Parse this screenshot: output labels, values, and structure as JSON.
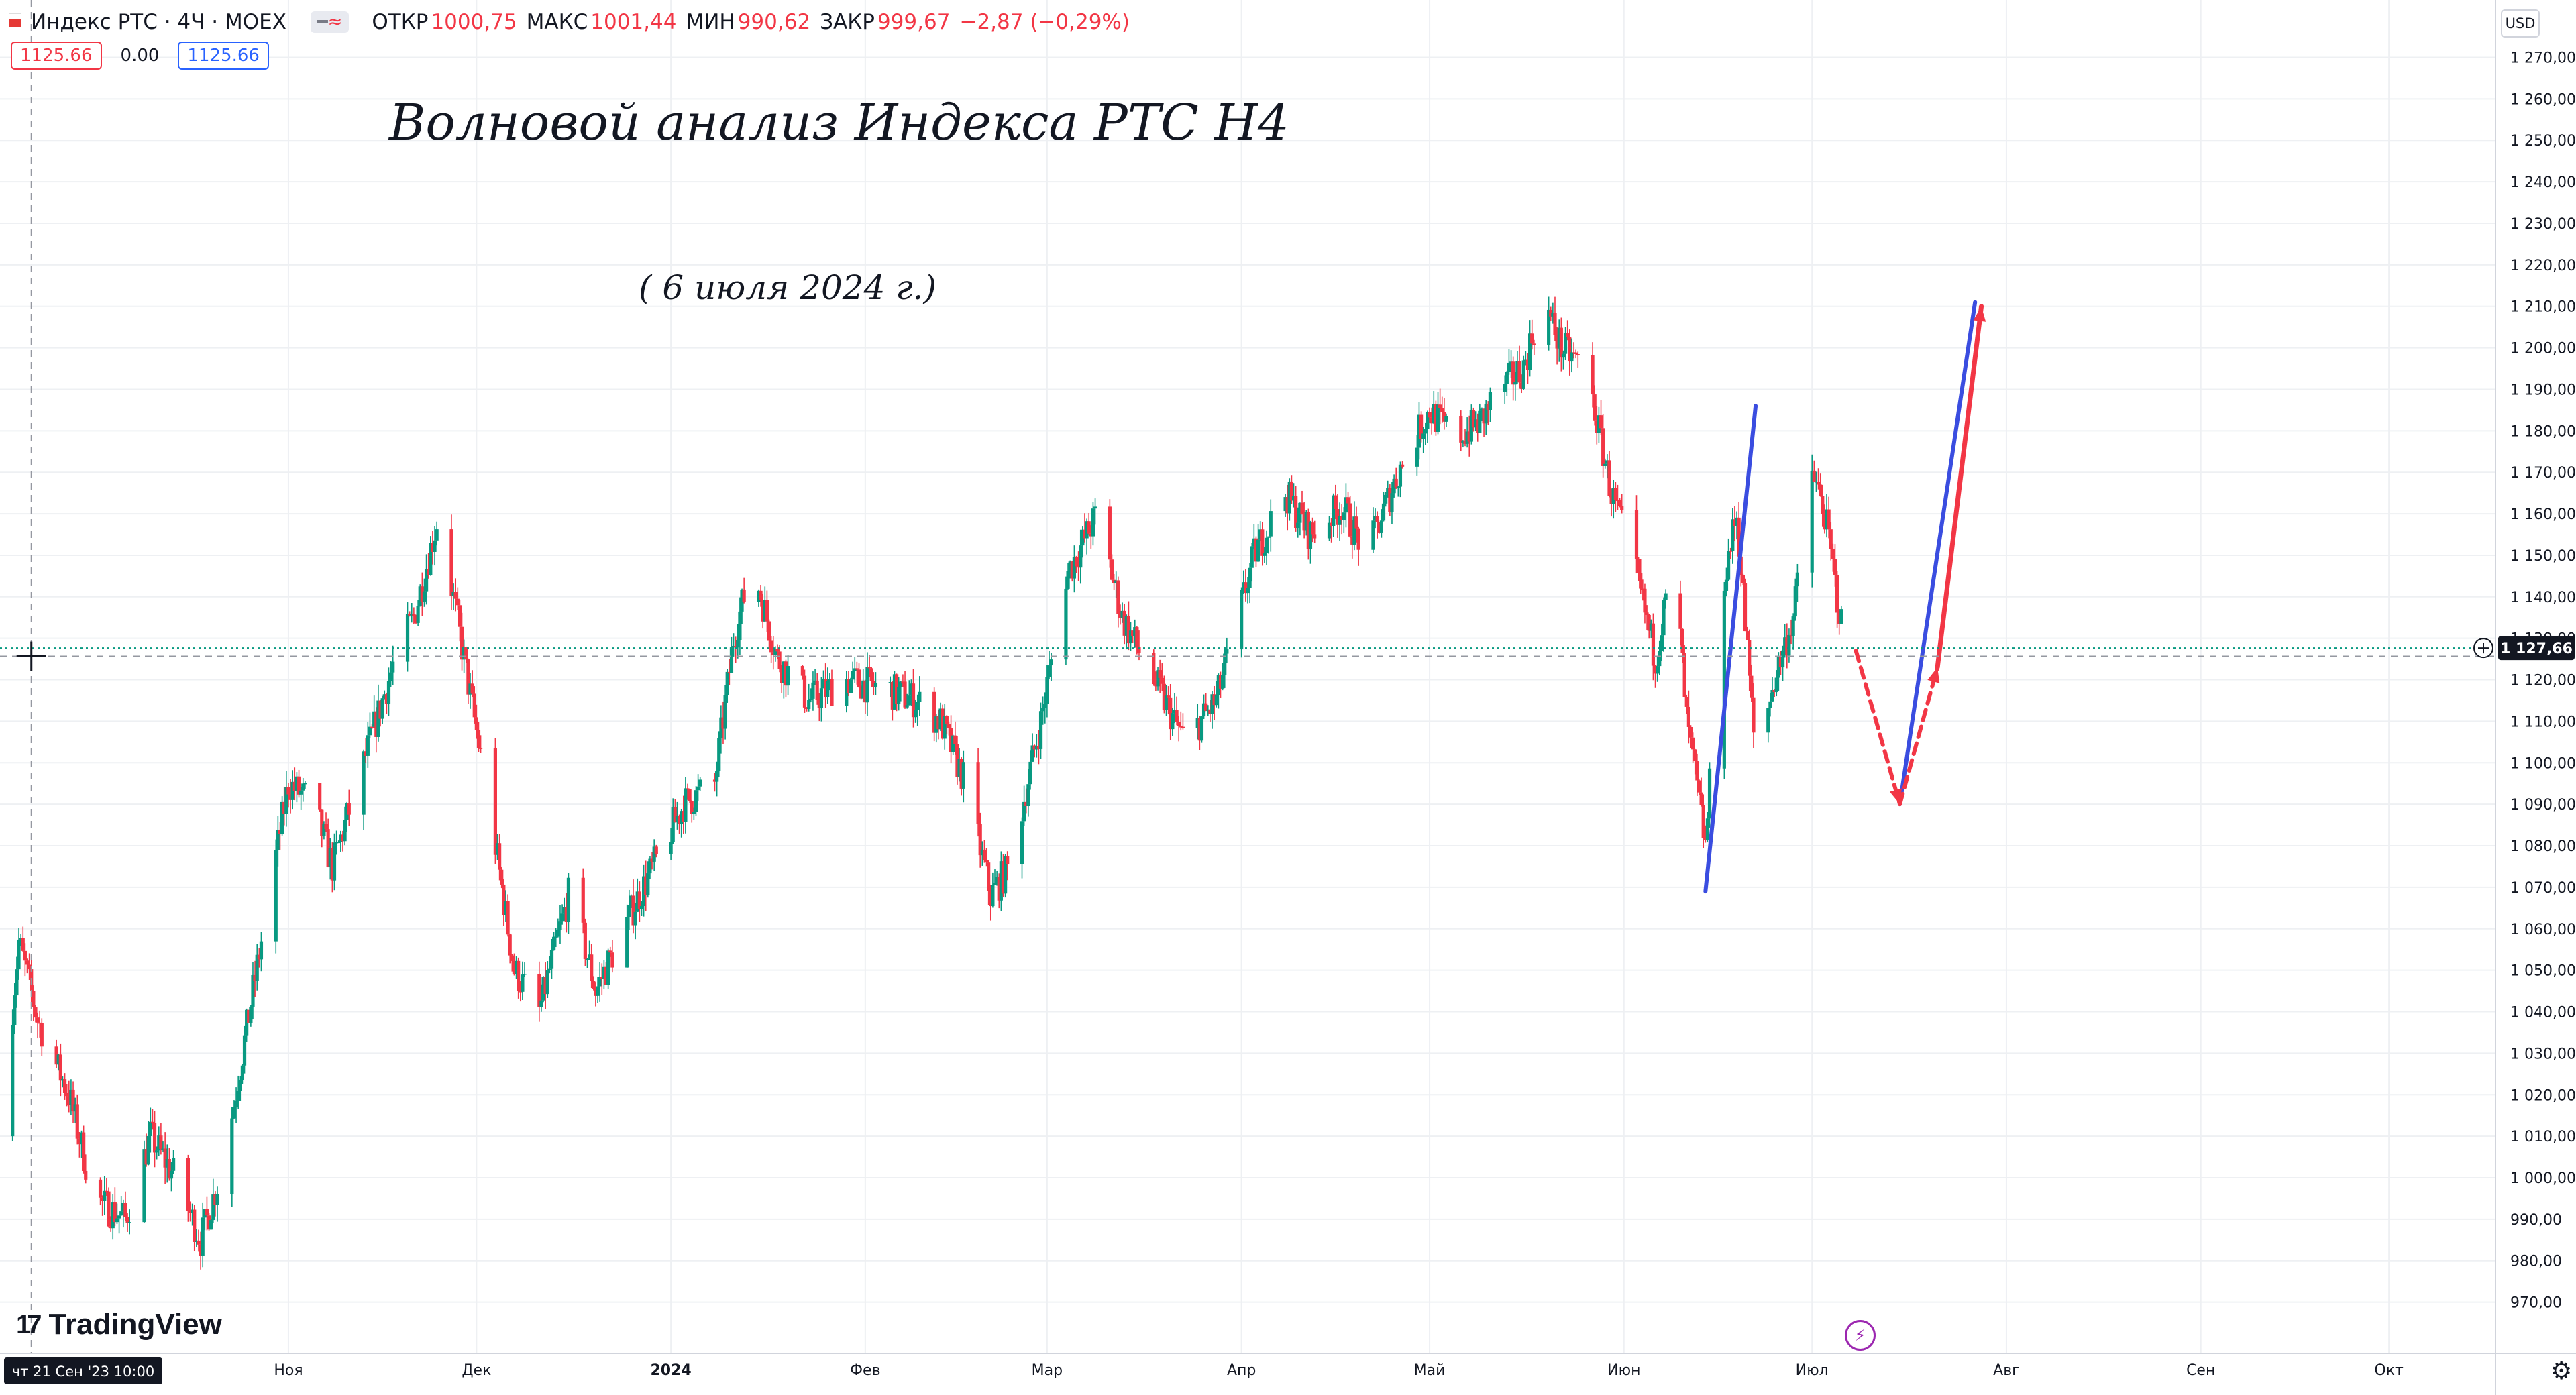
{
  "header": {
    "symbol": "Индекс РТС · 4Ч · MOEX",
    "open_label": "ОТКР",
    "open": "1000,75",
    "high_label": "МАКС",
    "high": "1001,44",
    "low_label": "МИН",
    "low": "990,62",
    "close_label": "ЗАКР",
    "close": "999,67",
    "change": "−2,87 (−0,29%)",
    "icon_a": "━",
    "icon_b": "≈"
  },
  "trade": {
    "sell": "1125.66",
    "spread": "0.00",
    "buy": "1125.66"
  },
  "currency": "USD",
  "annotations": {
    "title": "Волновой анализ Индекса РТС Н4",
    "date": "( 6 июля 2024 г.)"
  },
  "crosshair_date": "чт 21 Сен '23   10:00",
  "logo": "TradingView",
  "colors": {
    "up": "#089981",
    "down": "#f23645",
    "blue_line": "#3a4de0",
    "red_arrow": "#f23645",
    "grid": "#eef0f3"
  },
  "chart_data": {
    "type": "candlestick",
    "ylim": [
      965,
      1275
    ],
    "y_ticks": [
      "970,00",
      "980,00",
      "990,00",
      "1 000,00",
      "1 010,00",
      "1 020,00",
      "1 030,00",
      "1 040,00",
      "1 050,00",
      "1 060,00",
      "1 070,00",
      "1 080,00",
      "1 090,00",
      "1 100,00",
      "1 110,00",
      "1 120,00",
      "1 130,00",
      "1 140,00",
      "1 150,00",
      "1 160,00",
      "1 170,00",
      "1 180,00",
      "1 190,00",
      "1 200,00",
      "1 210,00",
      "1 220,00",
      "1 230,00",
      "1 240,00",
      "1 250,00",
      "1 260,00",
      "1 270,00"
    ],
    "x_ticks": [
      {
        "label": "Ноя",
        "date": "2023-11-01"
      },
      {
        "label": "Дек",
        "date": "2023-12-01"
      },
      {
        "label": "2024",
        "date": "2024-01-01",
        "bold": true
      },
      {
        "label": "Фев",
        "date": "2024-02-01"
      },
      {
        "label": "Мар",
        "date": "2024-03-01"
      },
      {
        "label": "Апр",
        "date": "2024-04-01"
      },
      {
        "label": "Май",
        "date": "2024-05-01"
      },
      {
        "label": "Июн",
        "date": "2024-06-01"
      },
      {
        "label": "Июл",
        "date": "2024-07-01"
      },
      {
        "label": "Авг",
        "date": "2024-08-01"
      },
      {
        "label": "Сен",
        "date": "2024-09-01"
      },
      {
        "label": "Окт",
        "date": "2024-10-01"
      }
    ],
    "last_price": 1127.66,
    "last_price_label": "1 127,66",
    "crosshair_price": 1125.66,
    "path": [
      [
        "2023-09-16",
        1010
      ],
      [
        "2023-09-19",
        1057
      ],
      [
        "2023-09-22",
        1038
      ],
      [
        "2023-09-27",
        1020
      ],
      [
        "2023-10-01",
        995
      ],
      [
        "2023-10-06",
        990
      ],
      [
        "2023-10-10",
        1010
      ],
      [
        "2023-10-14",
        1000
      ],
      [
        "2023-10-18",
        985
      ],
      [
        "2023-10-21",
        1000
      ],
      [
        "2023-10-23",
        1015
      ],
      [
        "2023-10-28",
        1060
      ],
      [
        "2023-11-01",
        1095
      ],
      [
        "2023-11-05",
        1090
      ],
      [
        "2023-11-08",
        1075
      ],
      [
        "2023-11-14",
        1105
      ],
      [
        "2023-11-18",
        1125
      ],
      [
        "2023-11-21",
        1135
      ],
      [
        "2023-11-25",
        1160
      ],
      [
        "2023-11-29",
        1125
      ],
      [
        "2023-12-03",
        1090
      ],
      [
        "2023-12-07",
        1050
      ],
      [
        "2023-12-11",
        1040
      ],
      [
        "2023-12-16",
        1070
      ],
      [
        "2023-12-20",
        1045
      ],
      [
        "2023-12-26",
        1065
      ],
      [
        "2024-01-03",
        1090
      ],
      [
        "2024-01-08",
        1095
      ],
      [
        "2024-01-11",
        1130
      ],
      [
        "2024-01-14",
        1148
      ],
      [
        "2024-01-18",
        1125
      ],
      [
        "2024-01-23",
        1115
      ],
      [
        "2024-01-29",
        1120
      ],
      [
        "2024-02-04",
        1118
      ],
      [
        "2024-02-09",
        1115
      ],
      [
        "2024-02-13",
        1110
      ],
      [
        "2024-02-17",
        1095
      ],
      [
        "2024-02-21",
        1068
      ],
      [
        "2024-02-24",
        1075
      ],
      [
        "2024-02-29",
        1110
      ],
      [
        "2024-03-04",
        1145
      ],
      [
        "2024-03-09",
        1160
      ],
      [
        "2024-03-13",
        1135
      ],
      [
        "2024-03-18",
        1120
      ],
      [
        "2024-03-23",
        1105
      ],
      [
        "2024-03-28",
        1115
      ],
      [
        "2024-04-03",
        1150
      ],
      [
        "2024-04-08",
        1165
      ],
      [
        "2024-04-12",
        1155
      ],
      [
        "2024-04-17",
        1162
      ],
      [
        "2024-04-21",
        1150
      ],
      [
        "2024-04-26",
        1170
      ],
      [
        "2024-05-01",
        1185
      ],
      [
        "2024-05-05",
        1178
      ],
      [
        "2024-05-09",
        1182
      ],
      [
        "2024-05-12",
        1190
      ],
      [
        "2024-05-16",
        1195
      ],
      [
        "2024-05-19",
        1212
      ],
      [
        "2024-05-22",
        1200
      ],
      [
        "2024-05-26",
        1195
      ],
      [
        "2024-05-30",
        1165
      ],
      [
        "2024-06-03",
        1145
      ],
      [
        "2024-06-06",
        1125
      ],
      [
        "2024-06-09",
        1150
      ],
      [
        "2024-06-11",
        1110
      ],
      [
        "2024-06-14",
        1080
      ],
      [
        "2024-06-17",
        1145
      ],
      [
        "2024-06-19",
        1160
      ],
      [
        "2024-06-22",
        1100
      ],
      [
        "2024-06-25",
        1120
      ],
      [
        "2024-06-28",
        1135
      ],
      [
        "2024-07-01",
        1170
      ],
      [
        "2024-07-03",
        1160
      ],
      [
        "2024-07-06",
        1130
      ],
      [
        "2024-07-08",
        1125
      ]
    ],
    "wave_projection": {
      "blue_impulse_1": [
        [
          "2024-06-14",
          1069
        ],
        [
          "2024-06-22",
          1186
        ]
      ],
      "blue_impulse_2": [
        [
          "2024-07-15",
          1090
        ],
        [
          "2024-07-27",
          1211
        ]
      ],
      "red_dashed_down": [
        [
          "2024-07-08",
          1127
        ],
        [
          "2024-07-15",
          1090
        ]
      ],
      "red_dashed_up": [
        [
          "2024-07-15",
          1090
        ],
        [
          "2024-07-21",
          1123
        ]
      ],
      "red_arrow_up": [
        [
          "2024-07-21",
          1123
        ],
        [
          "2024-07-28",
          1210
        ]
      ]
    }
  }
}
